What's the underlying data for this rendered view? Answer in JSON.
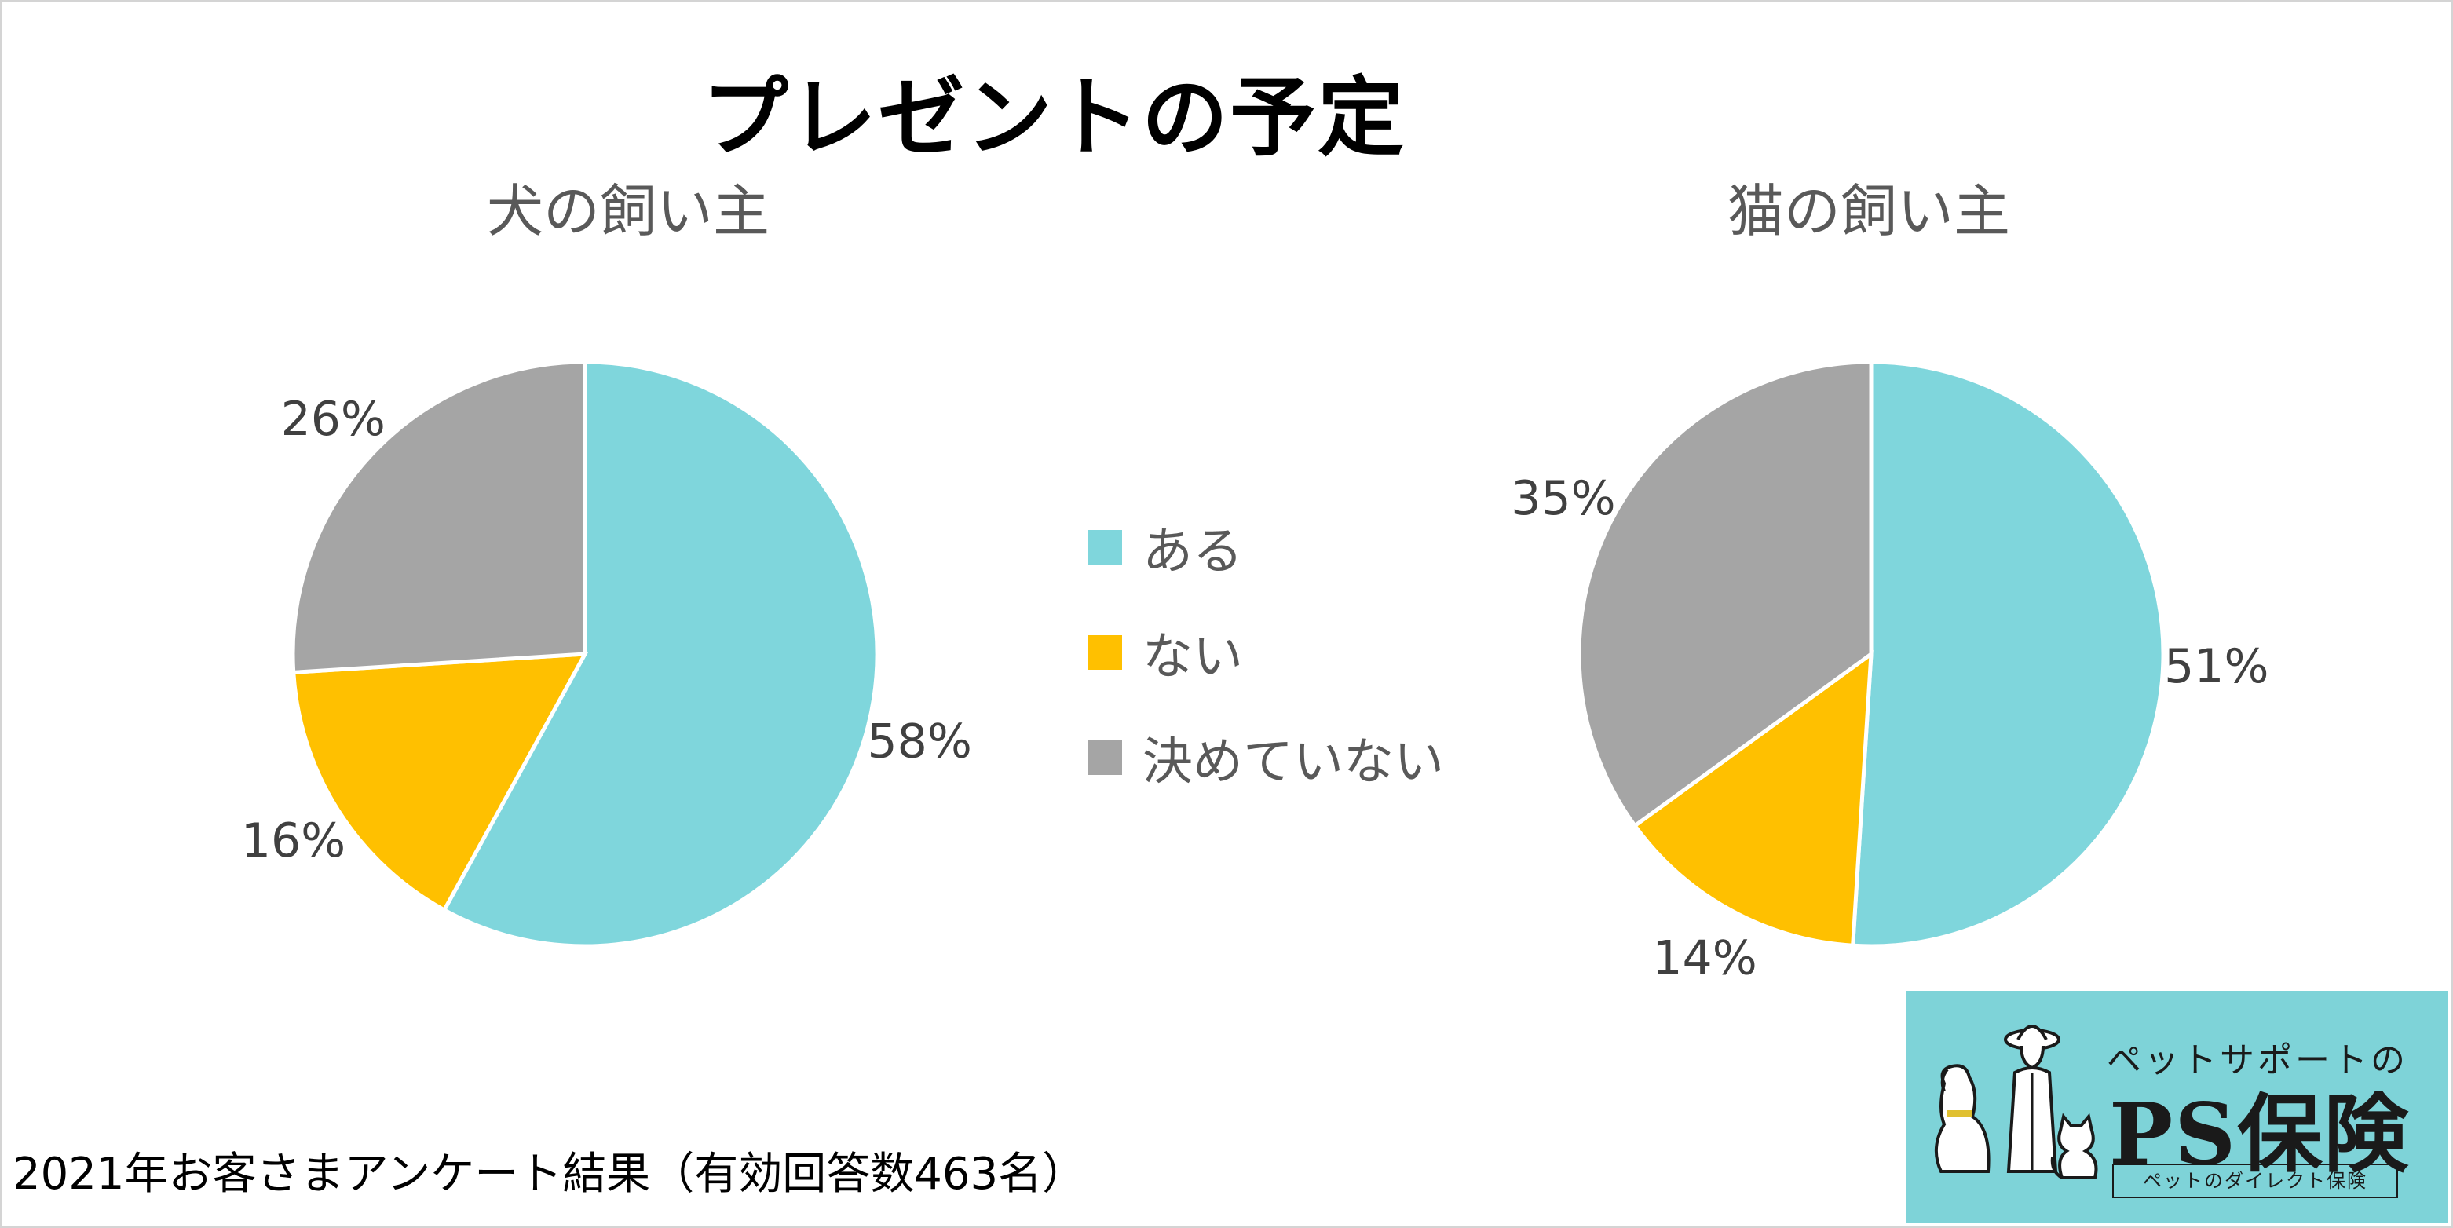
{
  "title": "プレゼントの予定",
  "footnote": "2021年お客さまアンケート結果（有効回答数463名）",
  "colors": {
    "aru": "#7fd6dc",
    "nai": "#ffc000",
    "kimeteinai": "#a5a5a5"
  },
  "legend": [
    {
      "label": "ある",
      "color": "#7fd6dc"
    },
    {
      "label": "ない",
      "color": "#ffc000"
    },
    {
      "label": "決めていない",
      "color": "#a5a5a5"
    }
  ],
  "chart_data": [
    {
      "type": "pie",
      "title": "犬の飼い主",
      "categories": [
        "ある",
        "ない",
        "決めていない"
      ],
      "values": [
        58,
        16,
        26
      ],
      "labels": [
        "58%",
        "16%",
        "26%"
      ]
    },
    {
      "type": "pie",
      "title": "猫の飼い主",
      "categories": [
        "ある",
        "ない",
        "決めていない"
      ],
      "values": [
        51,
        14,
        35
      ],
      "labels": [
        "51%",
        "14%",
        "35%"
      ]
    }
  ],
  "logo": {
    "top_text": "ペットサポートの",
    "main_text": "PS保険",
    "sub_text": "ペットのダイレクト保険",
    "icon": "pet-owner-with-dog-and-cat-illustration"
  }
}
